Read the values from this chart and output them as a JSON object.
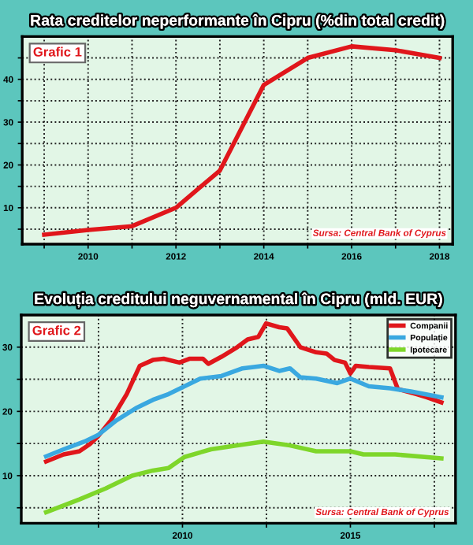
{
  "chart_data": [
    {
      "type": "line",
      "title": "Rata creditelor neperformante în Cipru (%din total credit)",
      "x": [
        2009,
        2010,
        2011,
        2012,
        2013,
        2014,
        2015,
        2016,
        2017,
        2018
      ],
      "series": [
        {
          "color": "#e0161b",
          "values": [
            3.7,
            4.8,
            5.7,
            10,
            18.7,
            38.7,
            45,
            47.7,
            46.8,
            45
          ]
        }
      ],
      "xlim": [
        2008.5,
        2018.3
      ],
      "xticks": [
        {
          "value": 2009,
          "label": null
        },
        2010,
        {
          "value": 2011,
          "label": null
        },
        2012,
        {
          "value": 2013,
          "label": null
        },
        2014,
        {
          "value": 2015,
          "label": null
        },
        2016,
        {
          "value": 2017,
          "label": null
        },
        2018
      ],
      "ylim": [
        1.5,
        50
      ],
      "yticks": [
        {
          "value": 5,
          "label": null
        },
        10,
        {
          "value": 15,
          "label": null
        },
        20,
        {
          "value": 25,
          "label": null
        },
        30,
        {
          "value": 35,
          "label": null
        },
        40,
        {
          "value": 45,
          "label": null
        }
      ],
      "grid": true,
      "legend": false,
      "marker": "none",
      "line_style": "solid",
      "annotations": [
        "Grafic 1",
        "Sursa: Central Bank of Cyprus"
      ]
    },
    {
      "type": "line",
      "title": "Evoluția creditului neguvernamental în Cipru (mld. EUR)",
      "series": [
        {
          "name": "Companii",
          "color": "#e0161b",
          "x": [
            2005.94,
            2006.46,
            2006.93,
            2007.24,
            2007.48,
            2007.87,
            2008.34,
            2008.73,
            2009.12,
            2009.44,
            2009.91,
            2010.22,
            2010.61,
            2010.77,
            2011.16,
            2011.63,
            2011.94,
            2012.26,
            2012.49,
            2012.88,
            2013.12,
            2013.51,
            2013.98,
            2014.29,
            2014.53,
            2014.84,
            2015.0,
            2015.16,
            2015.55,
            2016.18,
            2016.41,
            2016.96,
            2017.27,
            2017.71
          ],
          "values": [
            12.2,
            13.3,
            13.8,
            14.9,
            16.1,
            18.6,
            22.7,
            27.1,
            28.0,
            28.2,
            27.6,
            28.2,
            28.2,
            27.4,
            28.5,
            30.0,
            31.2,
            31.6,
            33.7,
            33.1,
            32.9,
            30.0,
            29.2,
            29.0,
            28.0,
            27.6,
            25.9,
            27.1,
            26.9,
            26.7,
            23.5,
            22.7,
            22.2,
            21.4
          ]
        },
        {
          "name": "Populație",
          "color": "#3aa8e0",
          "x": [
            2005.94,
            2006.46,
            2007.08,
            2007.48,
            2008.03,
            2008.65,
            2009.12,
            2009.59,
            2010.06,
            2010.53,
            2011.16,
            2011.79,
            2012.41,
            2012.88,
            2013.2,
            2013.51,
            2013.98,
            2014.61,
            2015.0,
            2015.55,
            2016.18,
            2016.8,
            2017.71
          ],
          "values": [
            13.0,
            14.1,
            15.3,
            16.3,
            18.6,
            20.6,
            21.8,
            22.7,
            23.9,
            25.1,
            25.5,
            26.7,
            27.1,
            26.3,
            26.7,
            25.3,
            25.1,
            24.4,
            25.1,
            23.9,
            23.6,
            23.1,
            22.2
          ]
        },
        {
          "name": "Ipotecare",
          "color": "#7ed62a",
          "x": [
            2005.94,
            2006.93,
            2007.71,
            2008.5,
            2009.12,
            2009.59,
            2010.06,
            2010.85,
            2011.63,
            2012.41,
            2013.2,
            2013.98,
            2015.0,
            2015.39,
            2016.33,
            2017.71
          ],
          "values": [
            4.3,
            6.3,
            8.0,
            10.0,
            10.8,
            11.2,
            12.9,
            14.1,
            14.7,
            15.3,
            14.7,
            13.8,
            13.8,
            13.3,
            13.3,
            12.7
          ]
        }
      ],
      "xlim": [
        2005.2,
        2018.13
      ],
      "xticks": [
        {
          "value": 2007.5,
          "label": null
        },
        2010,
        {
          "value": 2012.5,
          "label": null
        },
        2015,
        {
          "value": 2017.5,
          "label": null
        }
      ],
      "ylim": [
        2.6,
        35
      ],
      "yticks": [
        {
          "value": 5,
          "label": null
        },
        10,
        {
          "value": 15,
          "label": null
        },
        20,
        {
          "value": 25,
          "label": null
        },
        30
      ],
      "grid": true,
      "legend": "top right",
      "marker": "none",
      "line_style": "solid",
      "annotations": [
        "Grafic 2",
        "Sursa: Central Bank of Cyprus"
      ]
    }
  ]
}
